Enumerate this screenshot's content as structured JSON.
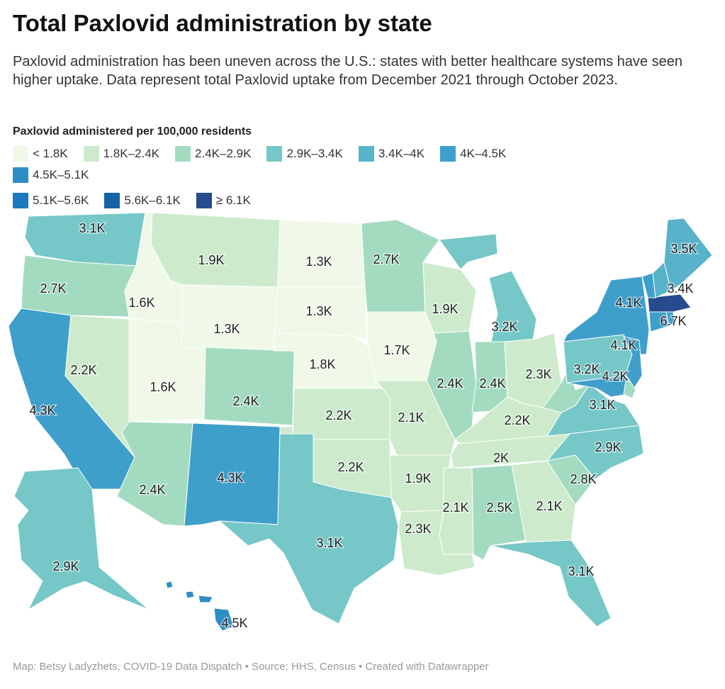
{
  "title": "Total Paxlovid administration by state",
  "description": "Paxlovid administration has been uneven across the U.S.: states with better healthcare systems have seen higher uptake. Data represent total Paxlovid uptake from December 2021 through October 2023.",
  "legend": {
    "title": "Paxlovid administered per 100,000 residents",
    "bins": [
      {
        "label": "< 1.8K",
        "color": "#f0f9e8"
      },
      {
        "label": "1.8K–2.4K",
        "color": "#cdebcc"
      },
      {
        "label": "2.4K–2.9K",
        "color": "#a3dbc1"
      },
      {
        "label": "2.9K–3.4K",
        "color": "#76c7c7"
      },
      {
        "label": "3.4K–4K",
        "color": "#58b3ca"
      },
      {
        "label": "4K–4.5K",
        "color": "#3f9fcb"
      },
      {
        "label": "4.5K–5.1K",
        "color": "#2d8ec6"
      },
      {
        "label": "5.1K–5.6K",
        "color": "#1a7abf"
      },
      {
        "label": "5.6K–6.1K",
        "color": "#1662a8"
      },
      {
        "label": "≥ 6.1K",
        "color": "#264b8e"
      }
    ]
  },
  "chart_data": {
    "type": "choropleth",
    "unit": "Paxlovid administered per 100,000 residents",
    "states": [
      {
        "id": "WA",
        "label": "3.1K",
        "bin": 3
      },
      {
        "id": "OR",
        "label": "2.7K",
        "bin": 2
      },
      {
        "id": "CA",
        "label": "4.3K",
        "bin": 5
      },
      {
        "id": "NV",
        "label": "2.2K",
        "bin": 1
      },
      {
        "id": "ID",
        "label": "1.6K",
        "bin": 0
      },
      {
        "id": "MT",
        "label": "1.9K",
        "bin": 1
      },
      {
        "id": "WY",
        "label": "1.3K",
        "bin": 0
      },
      {
        "id": "UT",
        "label": "1.6K",
        "bin": 0
      },
      {
        "id": "CO",
        "label": "2.4K",
        "bin": 2
      },
      {
        "id": "AZ",
        "label": "2.4K",
        "bin": 2
      },
      {
        "id": "NM",
        "label": "4.3K",
        "bin": 5
      },
      {
        "id": "ND",
        "label": "1.3K",
        "bin": 0
      },
      {
        "id": "SD",
        "label": "1.3K",
        "bin": 0
      },
      {
        "id": "NE",
        "label": "1.8K",
        "bin": 0
      },
      {
        "id": "KS",
        "label": "2.2K",
        "bin": 1
      },
      {
        "id": "OK",
        "label": "2.2K",
        "bin": 1
      },
      {
        "id": "TX",
        "label": "3.1K",
        "bin": 3
      },
      {
        "id": "MN",
        "label": "2.7K",
        "bin": 2
      },
      {
        "id": "IA",
        "label": "1.7K",
        "bin": 0
      },
      {
        "id": "MO",
        "label": "2.1K",
        "bin": 1
      },
      {
        "id": "AR",
        "label": "1.9K",
        "bin": 1
      },
      {
        "id": "LA",
        "label": "2.3K",
        "bin": 1
      },
      {
        "id": "WI",
        "label": "1.9K",
        "bin": 1
      },
      {
        "id": "IL",
        "label": "2.4K",
        "bin": 2
      },
      {
        "id": "MI",
        "label": "3.2K",
        "bin": 3
      },
      {
        "id": "IN",
        "label": "2.4K",
        "bin": 2
      },
      {
        "id": "OH",
        "label": "2.3K",
        "bin": 1
      },
      {
        "id": "KY",
        "label": "2.2K",
        "bin": 1
      },
      {
        "id": "TN",
        "label": "2K",
        "bin": 1
      },
      {
        "id": "MS",
        "label": "2.1K",
        "bin": 1
      },
      {
        "id": "AL",
        "label": "2.5K",
        "bin": 2
      },
      {
        "id": "GA",
        "label": "2.1K",
        "bin": 1
      },
      {
        "id": "FL",
        "label": "3.1K",
        "bin": 3
      },
      {
        "id": "SC",
        "label": "2.8K",
        "bin": 2
      },
      {
        "id": "NC",
        "label": "2.9K",
        "bin": 3
      },
      {
        "id": "VA",
        "label": "3.1K",
        "bin": 3
      },
      {
        "id": "WV",
        "label": "",
        "bin": 2
      },
      {
        "id": "PA",
        "label": "3.2K",
        "bin": 3
      },
      {
        "id": "NY",
        "label": "4.1K",
        "bin": 5
      },
      {
        "id": "NJ",
        "label": "4.1K",
        "bin": 5
      },
      {
        "id": "MD",
        "label": "4.2K",
        "bin": 5
      },
      {
        "id": "DE",
        "label": "",
        "bin": 2
      },
      {
        "id": "CT",
        "label": "",
        "bin": 5
      },
      {
        "id": "RI",
        "label": "",
        "bin": 5
      },
      {
        "id": "MA",
        "label": "6.7K",
        "bin": 9
      },
      {
        "id": "VT",
        "label": "",
        "bin": 5
      },
      {
        "id": "NH",
        "label": "3.4K",
        "bin": 4
      },
      {
        "id": "ME",
        "label": "3.5K",
        "bin": 4
      },
      {
        "id": "AK",
        "label": "2.9K",
        "bin": 3
      },
      {
        "id": "HI",
        "label": "4.5K",
        "bin": 6
      }
    ]
  },
  "footer": "Map: Betsy Ladyzhets, COVID-19 Data Dispatch • Source: HHS, Census • Created with Datawrapper"
}
